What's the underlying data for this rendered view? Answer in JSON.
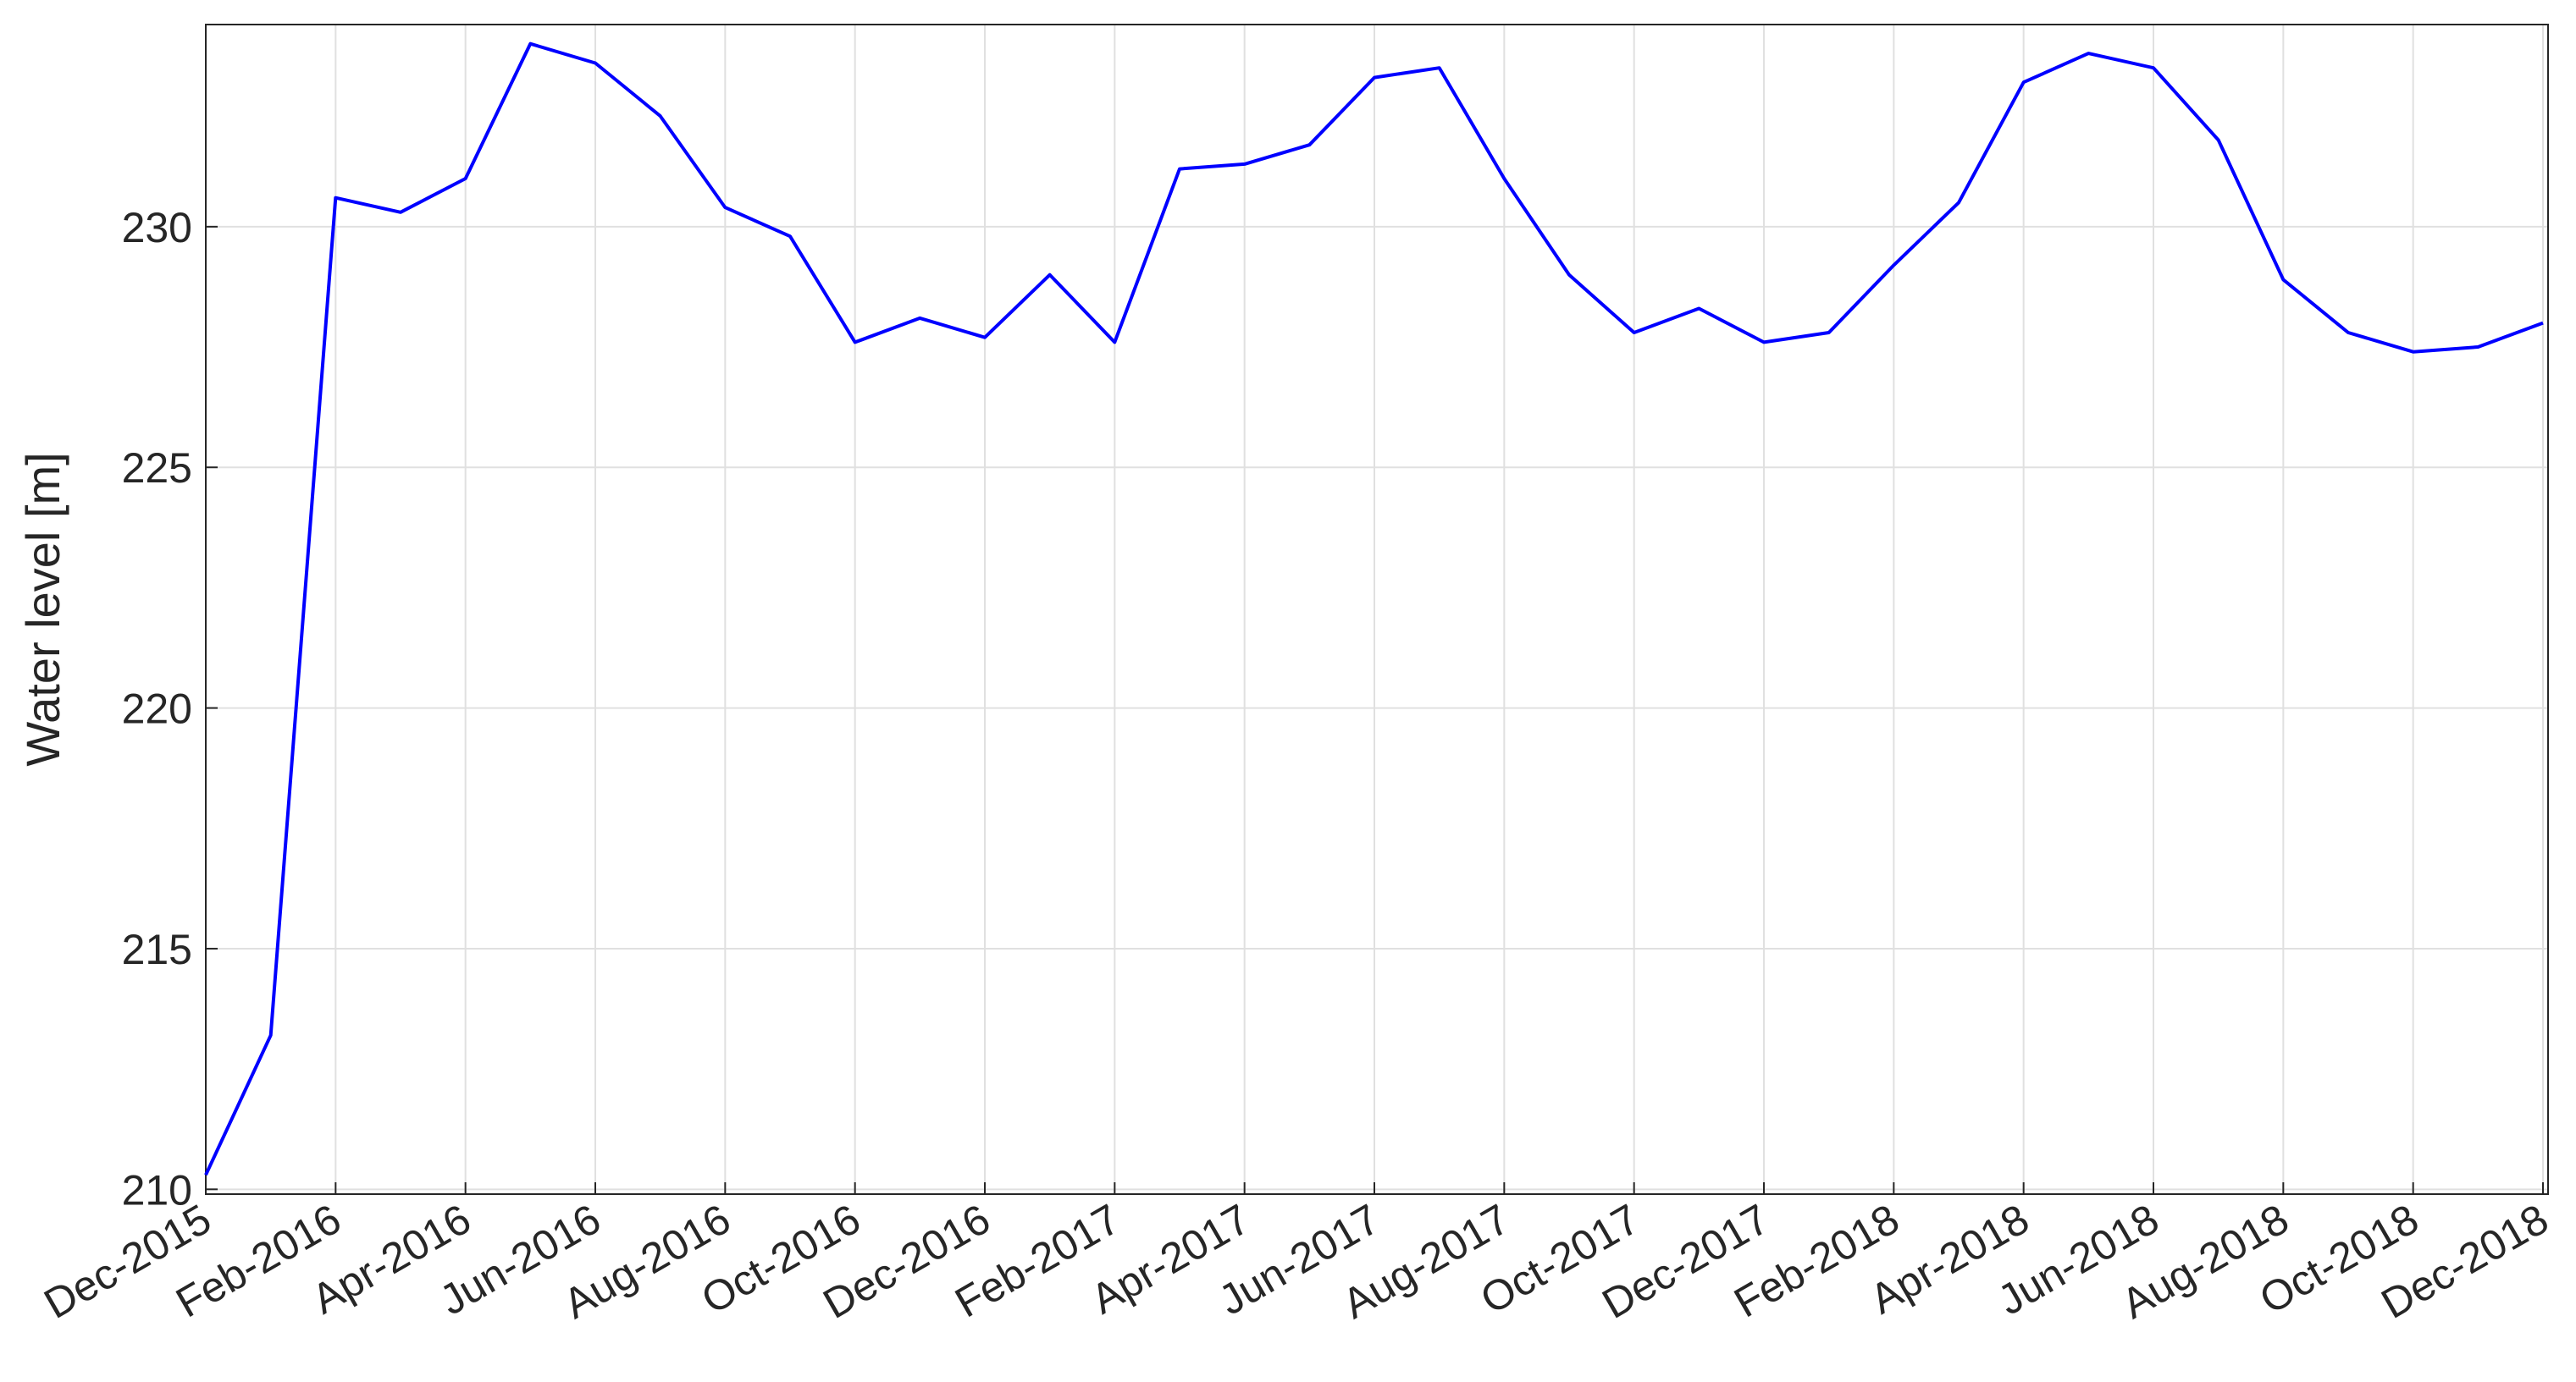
{
  "chart_data": {
    "type": "line",
    "y_label": "Water level [m]",
    "x": [
      "2015-12",
      "2016-01",
      "2016-02",
      "2016-03",
      "2016-04",
      "2016-05",
      "2016-06",
      "2016-07",
      "2016-08",
      "2016-09",
      "2016-10",
      "2016-11",
      "2016-12",
      "2017-01",
      "2017-02",
      "2017-03",
      "2017-04",
      "2017-05",
      "2017-06",
      "2017-07",
      "2017-08",
      "2017-09",
      "2017-10",
      "2017-11",
      "2017-12",
      "2018-01",
      "2018-02",
      "2018-03",
      "2018-04",
      "2018-05",
      "2018-06",
      "2018-07",
      "2018-08",
      "2018-09",
      "2018-10",
      "2018-11",
      "2018-12"
    ],
    "series": [
      {
        "name": "Water level",
        "color": "#0000ff",
        "values": [
          210.3,
          213.2,
          230.6,
          230.3,
          231.0,
          233.8,
          233.4,
          232.3,
          230.4,
          229.8,
          227.6,
          228.1,
          227.7,
          229.0,
          227.6,
          231.2,
          231.3,
          231.7,
          233.1,
          233.3,
          231.0,
          229.0,
          227.8,
          228.3,
          227.6,
          227.8,
          229.2,
          230.5,
          233.0,
          233.6,
          233.3,
          231.8,
          228.9,
          227.8,
          227.4,
          227.5,
          228.0
        ]
      }
    ],
    "ylim": [
      209.9,
      234.2
    ],
    "yticks": [
      210,
      215,
      220,
      225,
      230
    ],
    "xticks": [
      {
        "value": "2015-12",
        "label": "Dec-2015"
      },
      {
        "value": "2016-02",
        "label": "Feb-2016"
      },
      {
        "value": "2016-04",
        "label": "Apr-2016"
      },
      {
        "value": "2016-06",
        "label": "Jun-2016"
      },
      {
        "value": "2016-08",
        "label": "Aug-2016"
      },
      {
        "value": "2016-10",
        "label": "Oct-2016"
      },
      {
        "value": "2016-12",
        "label": "Dec-2016"
      },
      {
        "value": "2017-02",
        "label": "Feb-2017"
      },
      {
        "value": "2017-04",
        "label": "Apr-2017"
      },
      {
        "value": "2017-06",
        "label": "Jun-2017"
      },
      {
        "value": "2017-08",
        "label": "Aug-2017"
      },
      {
        "value": "2017-10",
        "label": "Oct-2017"
      },
      {
        "value": "2017-12",
        "label": "Dec-2017"
      },
      {
        "value": "2018-02",
        "label": "Feb-2018"
      },
      {
        "value": "2018-04",
        "label": "Apr-2018"
      },
      {
        "value": "2018-06",
        "label": "Jun-2018"
      },
      {
        "value": "2018-08",
        "label": "Aug-2018"
      },
      {
        "value": "2018-10",
        "label": "Oct-2018"
      },
      {
        "value": "2018-12",
        "label": "Dec-2018"
      }
    ],
    "grid": true
  }
}
